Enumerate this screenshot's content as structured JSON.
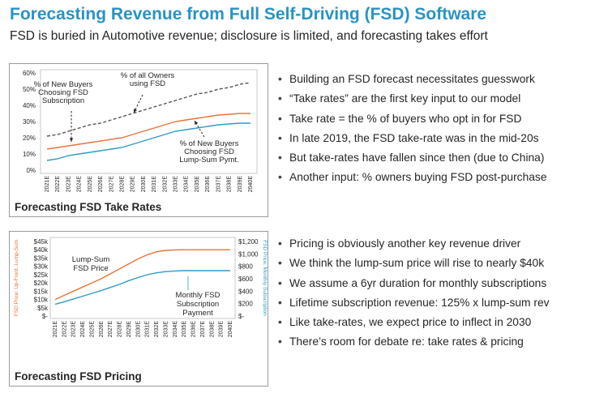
{
  "header": {
    "title": "Forecasting Revenue from Full Self-Driving (FSD) Software",
    "subtitle": "FSD is buried in Automotive revenue; disclosure is limited, and forecasting takes effort"
  },
  "colors": {
    "title": "#2a93c2",
    "orange": "#e8733a",
    "blue": "#2e9bc6",
    "dashed": "#555555"
  },
  "panels": [
    {
      "caption": "Forecasting FSD Take Rates"
    },
    {
      "caption": "Forecasting FSD Pricing"
    }
  ],
  "bullets_top": [
    "Building an FSD forecast necessitates guesswork",
    "“Take rates” are the first key input to our model",
    "Take rate = the % of buyers who opt in for FSD",
    "In late 2019, the FSD take-rate was in the mid-20s",
    "But take-rates have fallen since then (due to China)",
    "Another input: % owners buying FSD post-purchase"
  ],
  "bullets_bottom": [
    "Pricing is obviously another key revenue driver",
    "We think the lump-sum price will rise to nearly $40k",
    "We assume a 6yr duration for monthly subscriptions",
    "Lifetime subscription revenue: 125% x lump-sum rev",
    "Like take-rates, we expect price to inflect in 2030",
    "There’s room for debate re: take rates & pricing"
  ],
  "chart_data": [
    {
      "type": "line",
      "title": "Forecasting FSD Take Rates",
      "x": [
        "2021E",
        "2022E",
        "2023E",
        "2024E",
        "2025E",
        "2026E",
        "2027E",
        "2028E",
        "2029E",
        "2030E",
        "2031E",
        "2032E",
        "2033E",
        "2034E",
        "2035E",
        "2036E",
        "2037E",
        "2038E",
        "2039E",
        "2040E"
      ],
      "y_ticks": [
        "0%",
        "10%",
        "20%",
        "30%",
        "40%",
        "50%",
        "60%"
      ],
      "ylim": [
        0,
        0.6
      ],
      "series": [
        {
          "name": "% of all Owners using FSD",
          "style": "dashed",
          "color": "#555555",
          "values": [
            0.21,
            0.22,
            0.24,
            0.26,
            0.28,
            0.29,
            0.31,
            0.33,
            0.35,
            0.37,
            0.39,
            0.41,
            0.43,
            0.45,
            0.47,
            0.48,
            0.5,
            0.51,
            0.53,
            0.54
          ]
        },
        {
          "name": "% of New Buyers Choosing FSD Subscription",
          "style": "solid",
          "color": "#e8733a",
          "values": [
            0.13,
            0.14,
            0.15,
            0.16,
            0.17,
            0.18,
            0.19,
            0.2,
            0.22,
            0.24,
            0.26,
            0.28,
            0.3,
            0.31,
            0.32,
            0.33,
            0.34,
            0.345,
            0.35,
            0.35
          ]
        },
        {
          "name": "% of New Buyers Choosing FSD Lump-Sum Pymt.",
          "style": "solid",
          "color": "#2e9bc6",
          "values": [
            0.06,
            0.07,
            0.09,
            0.1,
            0.11,
            0.12,
            0.13,
            0.14,
            0.16,
            0.18,
            0.2,
            0.22,
            0.24,
            0.25,
            0.26,
            0.27,
            0.28,
            0.285,
            0.29,
            0.29
          ]
        }
      ],
      "annotations": {
        "owners": [
          "% of all Owners",
          "using FSD"
        ],
        "subscription": [
          "% of New Buyers",
          "Choosing FSD",
          "Subscription"
        ],
        "lumpsum": [
          "% of New Buyers",
          "Choosing FSD",
          "Lump-Sum Pymt."
        ]
      },
      "grid": false
    },
    {
      "type": "line",
      "title": "Forecasting FSD Pricing",
      "x": [
        "2021E",
        "2022E",
        "2023E",
        "2024E",
        "2025E",
        "2026E",
        "2027E",
        "2028E",
        "2029E",
        "2030E",
        "2031E",
        "2032E",
        "2033E",
        "2034E",
        "2035E",
        "2036E",
        "2037E",
        "2038E",
        "2039E",
        "2040E"
      ],
      "y_left_ticks": [
        "$-",
        "$5k",
        "$10k",
        "$15k",
        "$20k",
        "$25k",
        "$30k",
        "$35k",
        "$40k",
        "$45k"
      ],
      "y_right_ticks": [
        "$-",
        "$200",
        "$400",
        "$600",
        "$800",
        "$1,000",
        "$1,200"
      ],
      "ylim_left": [
        0,
        45000
      ],
      "ylim_right": [
        0,
        1200
      ],
      "ylabel_left": "FSD Price: Up-Front, Lump-Sum",
      "ylabel_right": "FSD Price: Monthly Subscription",
      "series": [
        {
          "name": "Lump-Sum FSD Price",
          "axis": "left",
          "color": "#e8733a",
          "values": [
            10000,
            12500,
            15000,
            17500,
            20000,
            22500,
            25500,
            28500,
            31500,
            34500,
            37000,
            38800,
            39600,
            39900,
            40000,
            40000,
            40000,
            40000,
            40000,
            40000
          ]
        },
        {
          "name": "Monthly FSD Subscription Payment",
          "axis": "right",
          "color": "#2e9bc6",
          "values": [
            190,
            230,
            275,
            320,
            365,
            410,
            460,
            510,
            570,
            620,
            665,
            695,
            715,
            725,
            730,
            730,
            730,
            730,
            730,
            730
          ]
        }
      ],
      "annotations": {
        "lumpsum": [
          "Lump-Sum",
          "FSD Price"
        ],
        "monthly": [
          "Monthly FSD",
          "Subscription",
          "Payment"
        ]
      },
      "grid": false
    }
  ]
}
